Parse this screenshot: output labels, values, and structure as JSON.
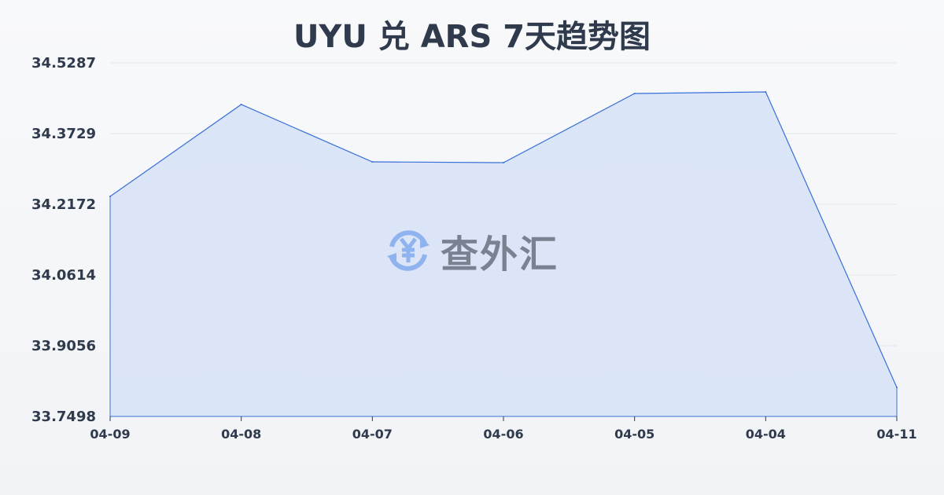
{
  "chart_data": {
    "type": "area",
    "title": "UYU 兑 ARS 7天趋势图",
    "categories": [
      "04-09",
      "04-08",
      "04-07",
      "04-06",
      "04-05",
      "04-04",
      "04-11"
    ],
    "values": [
      34.2344,
      34.437,
      34.3106,
      34.3089,
      34.4612,
      34.4647,
      33.8137
    ],
    "yticks": [
      "34.5287",
      "34.3729",
      "34.2172",
      "34.0614",
      "33.9056",
      "33.7498"
    ],
    "ylim": [
      33.7498,
      34.5287
    ],
    "grid": true,
    "line_color": "#3a6fd8",
    "fill_color": "#d6e2f7"
  },
  "watermark": {
    "text": "查外汇",
    "icon": "yen-exchange-icon",
    "icon_color": "#8fb3ee"
  }
}
